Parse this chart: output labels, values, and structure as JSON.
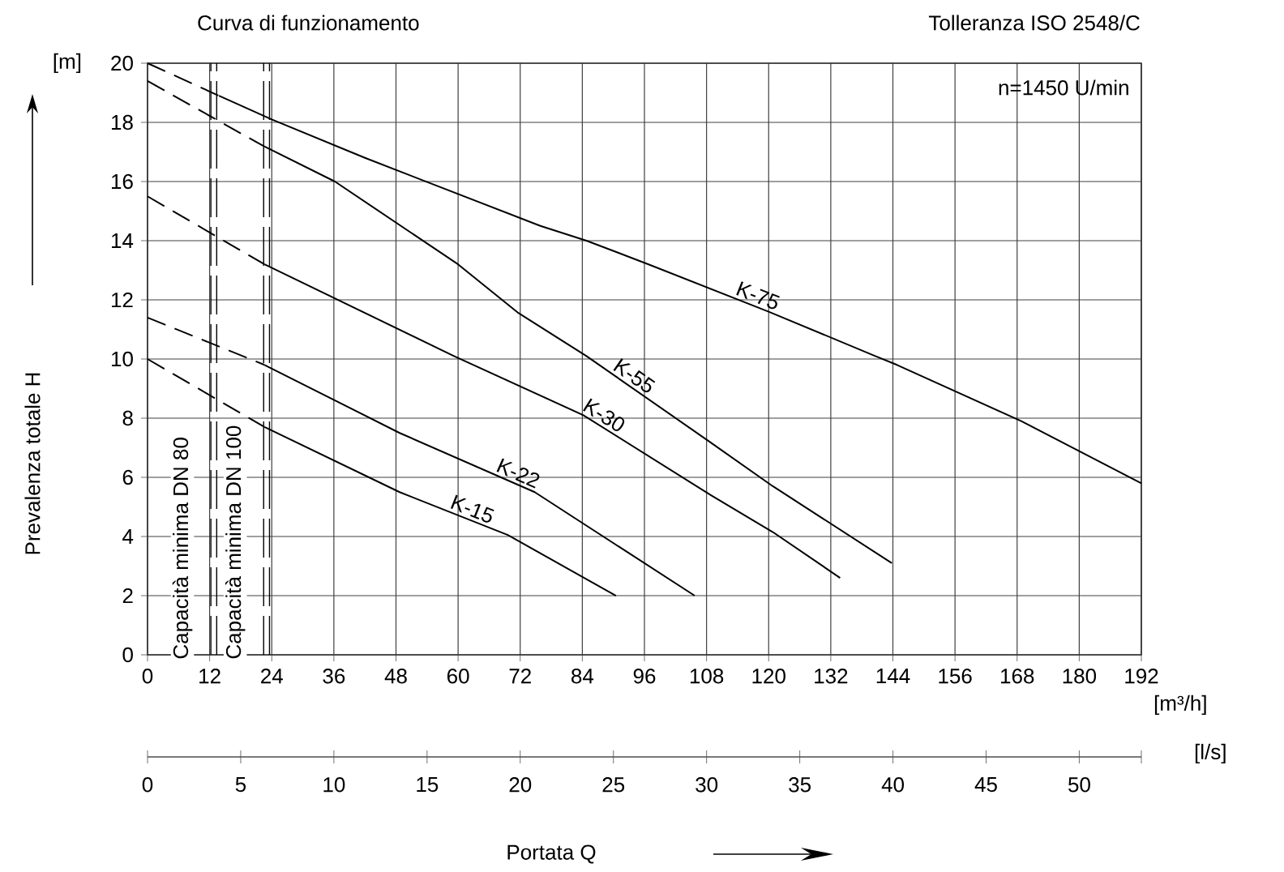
{
  "chart_data": {
    "type": "line",
    "title": "Curva di funzionamento",
    "subtitle": "Tolleranza ISO 2548/C",
    "xlabel": "Portata  Q",
    "ylabel": "Prevalenza totale  H",
    "x2label": "[l/s]",
    "annotations": [
      "[m]",
      "[m³/h]",
      "n=1450 U/min"
    ],
    "xlim": [
      0,
      192
    ],
    "xticks": [
      0,
      12,
      24,
      36,
      48,
      60,
      72,
      84,
      96,
      108,
      120,
      132,
      144,
      156,
      168,
      180,
      192
    ],
    "ylim": [
      0,
      20
    ],
    "yticks": [
      0,
      2,
      4,
      6,
      8,
      10,
      12,
      14,
      16,
      18,
      20
    ],
    "x2lim": [
      0,
      53.33
    ],
    "x2ticks": [
      0,
      5,
      10,
      15,
      20,
      25,
      30,
      35,
      40,
      45,
      50
    ],
    "grid": true,
    "ref_lines": [
      {
        "axis": "x",
        "value": 12.8,
        "label": "Capacità minima DN 80",
        "line_style": "dashed",
        "color": "#000000"
      },
      {
        "axis": "x",
        "value": 23,
        "label": "Capacità minima DN 100",
        "line_style": "dashed",
        "color": "#000000"
      }
    ],
    "series": [
      {
        "color": "#000000",
        "line_style": "dashed",
        "x": [
          0,
          13.8
        ],
        "values": [
          20,
          18.9
        ]
      },
      {
        "name": "K-75",
        "color": "#000000",
        "line_style": "solid",
        "x": [
          13.8,
          24,
          42,
          75.9,
          84.8,
          96.8,
          120,
          140.6,
          144.8,
          168.8,
          192
        ],
        "values": [
          18.9,
          18.1,
          16.8,
          14.5,
          14.0,
          13.2,
          11.6,
          10.1,
          9.8,
          7.9,
          5.8
        ]
      },
      {
        "color": "#000000",
        "line_style": "dashed",
        "x": [
          0,
          22.4
        ],
        "values": [
          19.4,
          17.2
        ]
      },
      {
        "name": "K-55",
        "color": "#000000",
        "line_style": "solid",
        "x": [
          22.4,
          36.2,
          60,
          71.7,
          84.8,
          108.2,
          120.8,
          143.8
        ],
        "values": [
          17.2,
          16.0,
          13.2,
          11.55,
          10.1,
          7.25,
          5.7,
          3.1
        ]
      },
      {
        "color": "#000000",
        "line_style": "dashed",
        "x": [
          0,
          22.6
        ],
        "values": [
          15.5,
          13.2
        ]
      },
      {
        "name": "K-30",
        "color": "#000000",
        "line_style": "solid",
        "x": [
          22.6,
          59.2,
          84.2,
          108.8,
          120.8,
          133.8
        ],
        "values": [
          13.2,
          10.1,
          8.1,
          5.4,
          4.15,
          2.6
        ]
      },
      {
        "color": "#000000",
        "line_style": "dashed",
        "x": [
          0,
          22.6
        ],
        "values": [
          11.4,
          9.8
        ]
      },
      {
        "name": "K-22",
        "color": "#000000",
        "line_style": "solid",
        "x": [
          22.6,
          48.7,
          74.8,
          105.7
        ],
        "values": [
          9.8,
          7.5,
          5.5,
          2.0
        ]
      },
      {
        "color": "#000000",
        "line_style": "dashed",
        "x": [
          0,
          22.6
        ],
        "values": [
          10.0,
          7.7
        ]
      },
      {
        "name": "K-15",
        "color": "#000000",
        "line_style": "solid",
        "x": [
          22.6,
          48.7,
          69.6,
          90.5
        ],
        "values": [
          7.7,
          5.5,
          4.05,
          2.0
        ]
      }
    ]
  }
}
